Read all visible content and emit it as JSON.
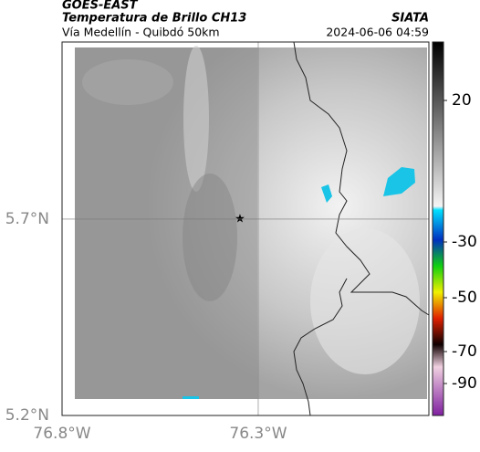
{
  "header": {
    "source": "GOES-EAST",
    "title": "Temperatura de Brillo CH13",
    "subtitle": "Vía Medellín - Quibdó 50km",
    "org": "SIATA",
    "datetime": "2024-06-06 04:59"
  },
  "map": {
    "xlim": [
      -76.8,
      -75.865
    ],
    "ylim": [
      5.2,
      6.151
    ],
    "xticks": [
      {
        "value": -76.8,
        "label": "76.8°W"
      },
      {
        "value": -76.3,
        "label": "76.3°W"
      }
    ],
    "yticks": [
      {
        "value": 5.2,
        "label": "5.2°N"
      },
      {
        "value": 5.7,
        "label": "5.7°N"
      }
    ]
  },
  "colorbar": {
    "ticks": [
      20,
      -30,
      -50,
      -70,
      -90
    ]
  }
}
